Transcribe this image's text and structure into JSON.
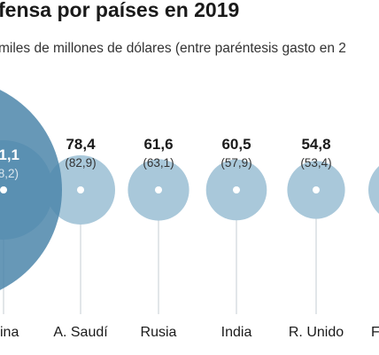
{
  "header": {
    "title": "fensa por países en 2019",
    "subtitle": "miles de millones de dólares (entre paréntesis gasto en 2"
  },
  "colors": {
    "bubble": "#a9c8da",
    "bubble_highlight": "#4c86aa",
    "guide_line": "#c4cdd3",
    "center_dot": "#ffffff"
  },
  "chart_data": {
    "type": "bubble",
    "title": "fensa por países en 2019",
    "subtitle": "miles de millones de dólares (entre paréntesis gasto en 2",
    "categories": [
      "ina",
      "A. Saudí",
      "Rusia",
      "India",
      "R. Unido",
      "F"
    ],
    "series": [
      {
        "values": [
          "1,1",
          "78,4",
          "61,6",
          "60,5",
          "54,8",
          ""
        ],
        "previous_labels": [
          "8,2)",
          "(82,9)",
          "(63,1)",
          "(57,9)",
          "(53,4)",
          ""
        ]
      }
    ],
    "numeric_values": [
      null,
      78.4,
      61.6,
      60.5,
      54.8,
      null
    ],
    "grid": false,
    "legend": "none"
  }
}
